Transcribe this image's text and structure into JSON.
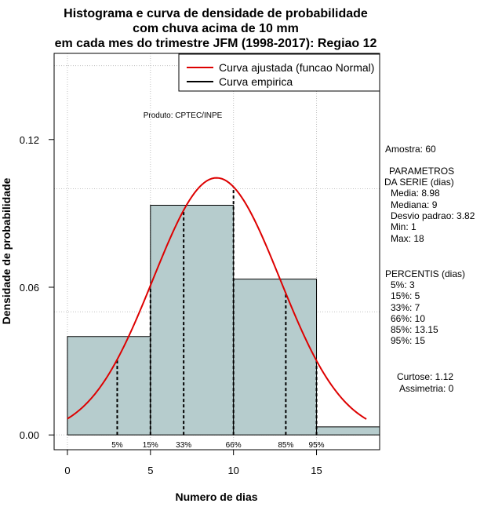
{
  "chart_data": {
    "type": "bar",
    "title_lines": [
      "Histograma e curva de densidade de probabilidade",
      "com chuva acima de 10 mm",
      "em cada mes do trimestre JFM (1998-2017): Regiao 12"
    ],
    "xlabel": "Numero de dias",
    "ylabel": "Densidade de probabilidade",
    "xlim": [
      -0.8,
      18.8
    ],
    "ylim": [
      -0.006,
      0.155
    ],
    "x_ticks": [
      0,
      5,
      10,
      15
    ],
    "y_ticks": [
      0.0,
      0.06,
      0.12
    ],
    "y_tick_labels": [
      "0.00",
      "0.06",
      "0.12"
    ],
    "grid_x": [
      0,
      5,
      10,
      15
    ],
    "grid_y": [
      0,
      0.05,
      0.1,
      0.15
    ],
    "bins": [
      {
        "x0": 0,
        "x1": 5,
        "density": 0.04
      },
      {
        "x0": 5,
        "x1": 10,
        "density": 0.0933
      },
      {
        "x0": 10,
        "x1": 15,
        "density": 0.0633
      },
      {
        "x0": 15,
        "x1": 18.8,
        "density": 0.0033
      }
    ],
    "bar_color": "#b6cccd",
    "normal_fit": {
      "mean": 8.98,
      "sd": 3.82,
      "x_min": 0,
      "x_max": 18,
      "color": "#dd0000"
    },
    "percentiles": [
      {
        "label": "5%",
        "value": 3
      },
      {
        "label": "15%",
        "value": 5
      },
      {
        "label": "33%",
        "value": 7
      },
      {
        "label": "66%",
        "value": 10
      },
      {
        "label": "85%",
        "value": 13.15
      },
      {
        "label": "95%",
        "value": 15
      }
    ],
    "legend": {
      "placement": "top-right",
      "entries": [
        {
          "label": "Curva ajustada (funcao Normal)",
          "color": "#dd0000"
        },
        {
          "label": "Curva empirica",
          "color": "#000000"
        }
      ]
    },
    "annotation": "Produto: CPTEC/INPE",
    "side_text": {
      "amostra": "Amostra: 60",
      "param_title1": "PARAMETROS",
      "param_title2": "DA SERIE (dias)",
      "media": "Media: 8.98",
      "mediana": "Mediana: 9",
      "desvio": "Desvio padrao: 3.82",
      "min": "Min: 1",
      "max": "Max: 18",
      "perc_title": "PERCENTIS (dias)",
      "p5": "5%: 3",
      "p15": "15%: 5",
      "p33": "33%: 7",
      "p66": "66%: 10",
      "p85": "85%: 13.15",
      "p95": "95%: 15",
      "curtose": "Curtose: 1.12",
      "assimetria": "Assimetria: 0"
    }
  }
}
